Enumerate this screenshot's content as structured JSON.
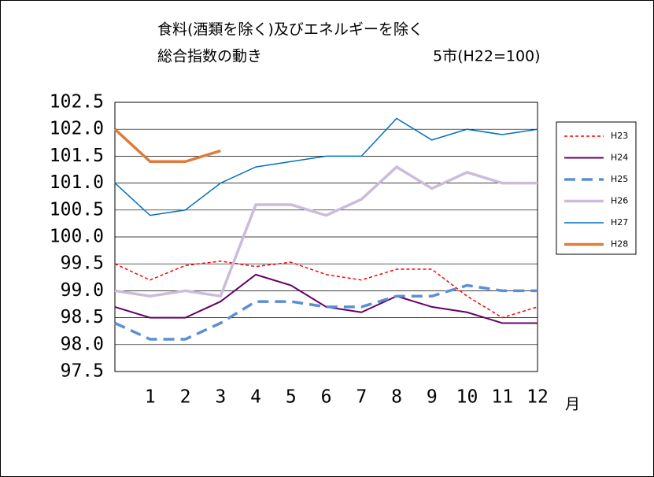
{
  "chart_data": {
    "type": "line",
    "title": [
      "食料(酒類を除く)及びエネルギーを除く",
      "総合指数の動き"
    ],
    "subtitle": "5市(H22=100)",
    "x_label": "月",
    "categories": [
      null,
      "1",
      "2",
      "3",
      "4",
      "5",
      "6",
      "7",
      "8",
      "9",
      "10",
      "11",
      "12"
    ],
    "ylim": [
      97.5,
      102.5
    ],
    "yticks": [
      97.5,
      98.5,
      99.5,
      100.5,
      101.5,
      102.5,
      {
        "value": 98,
        "label": "98.0"
      },
      {
        "value": 99,
        "label": "99.0"
      },
      {
        "value": 100,
        "label": "100.0"
      },
      {
        "value": 101,
        "label": "101.0"
      },
      {
        "value": 102,
        "label": "102.0"
      }
    ],
    "grid": true,
    "legend": "right",
    "series": [
      {
        "name": "H23",
        "color": "#ff0000",
        "dash": true,
        "width": 1.5,
        "values": [
          99.5,
          99.2,
          99.47,
          99.55,
          99.45,
          99.53,
          99.3,
          99.2,
          99.4,
          99.4,
          98.9,
          98.5,
          98.7
        ]
      },
      {
        "name": "H24",
        "color": "#660066",
        "dash": false,
        "width": 2,
        "values": [
          98.7,
          98.5,
          98.5,
          98.8,
          99.3,
          99.1,
          98.7,
          98.6,
          98.9,
          98.7,
          98.6,
          98.4,
          98.4
        ]
      },
      {
        "name": "H25",
        "color": "#5b8fd4",
        "dash": true,
        "width": 3.5,
        "values": [
          98.4,
          98.1,
          98.1,
          98.4,
          98.8,
          98.8,
          98.7,
          98.7,
          98.9,
          98.9,
          99.1,
          99.0,
          99.0
        ]
      },
      {
        "name": "H26",
        "color": "#cbbcdb",
        "dash": false,
        "width": 3.5,
        "values": [
          99.0,
          98.9,
          99.0,
          98.9,
          100.6,
          100.6,
          100.4,
          100.7,
          101.3,
          100.9,
          101.2,
          101.0,
          101.0
        ]
      },
      {
        "name": "H27",
        "color": "#0070c0",
        "dash": false,
        "width": 1.5,
        "values": [
          101.0,
          100.4,
          100.5,
          101.0,
          101.3,
          101.4,
          101.5,
          101.5,
          102.2,
          101.8,
          102.0,
          101.9,
          102.0
        ]
      },
      {
        "name": "H28",
        "color": "#e07b39",
        "dash": false,
        "width": 3.5,
        "values": [
          102.0,
          101.4,
          101.4,
          101.6,
          null,
          null,
          null,
          null,
          null,
          null,
          null,
          null,
          null
        ]
      }
    ]
  }
}
